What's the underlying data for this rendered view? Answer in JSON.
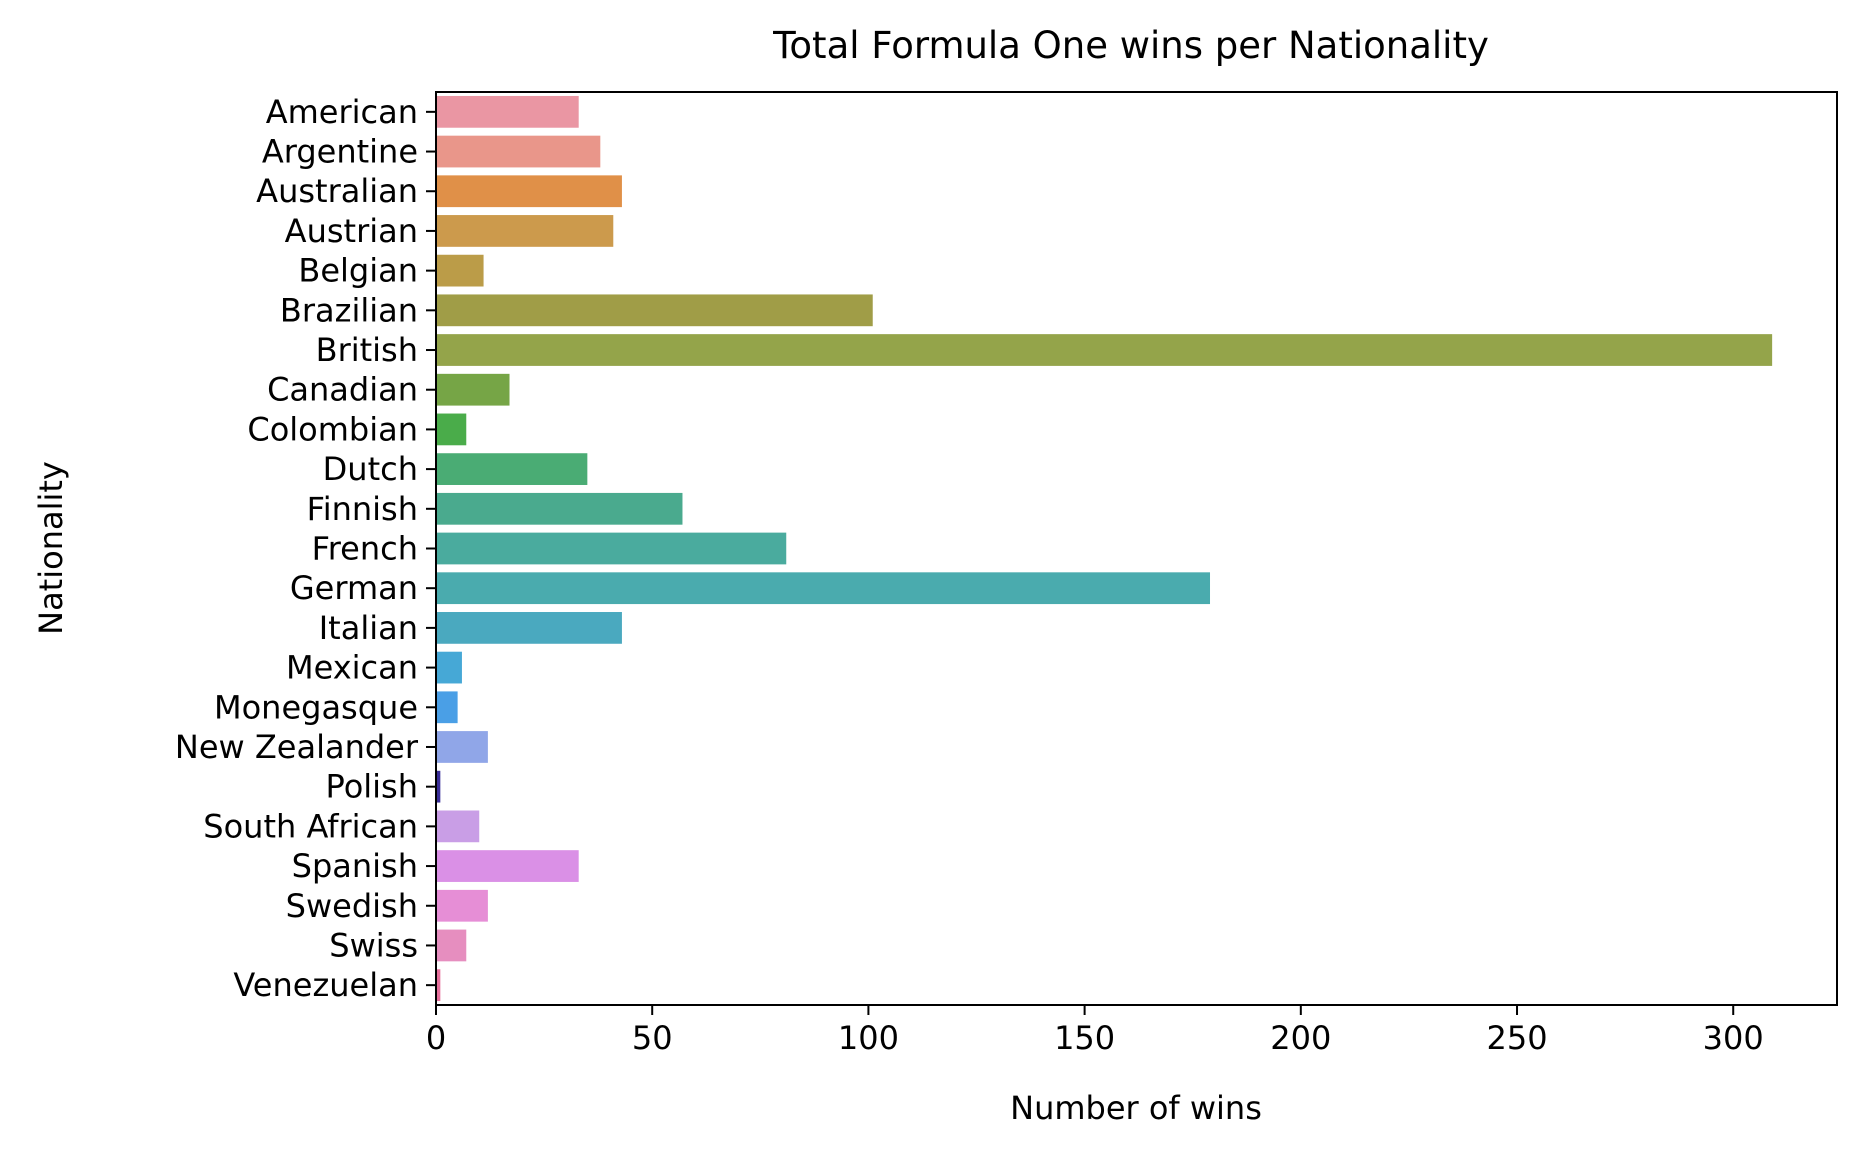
{
  "chart_data": {
    "type": "bar",
    "orientation": "horizontal",
    "title": "Total Formula One wins per Nationality",
    "xlabel": "Number of wins",
    "ylabel": "Nationality",
    "xlim": [
      0,
      324
    ],
    "xticks": [
      0,
      50,
      100,
      150,
      200,
      250,
      300
    ],
    "grid": false,
    "categories": [
      "American",
      "Argentine",
      "Australian",
      "Austrian",
      "Belgian",
      "Brazilian",
      "British",
      "Canadian",
      "Colombian",
      "Dutch",
      "Finnish",
      "French",
      "German",
      "Italian",
      "Mexican",
      "Monegasque",
      "New Zealander",
      "Polish",
      "South African",
      "Spanish",
      "Swedish",
      "Swiss",
      "Venezuelan"
    ],
    "values": [
      33,
      38,
      43,
      41,
      11,
      101,
      309,
      17,
      7,
      35,
      57,
      81,
      179,
      43,
      6,
      5,
      12,
      1,
      10,
      33,
      12,
      7,
      1
    ],
    "colors": [
      "#ea96a3",
      "#e9968a",
      "#e09048",
      "#cc9a4c",
      "#bb9c48",
      "#a09d47",
      "#94a44a",
      "#76a546",
      "#4aac4a",
      "#4aac74",
      "#4aaa8e",
      "#4aab9e",
      "#4aabae",
      "#4aa9bf",
      "#46a8d6",
      "#4a9fe6",
      "#90a6e8",
      "#3a2e98",
      "#c99ee6",
      "#da90e6",
      "#e68ed6",
      "#e68ebf",
      "#e6709c"
    ]
  }
}
